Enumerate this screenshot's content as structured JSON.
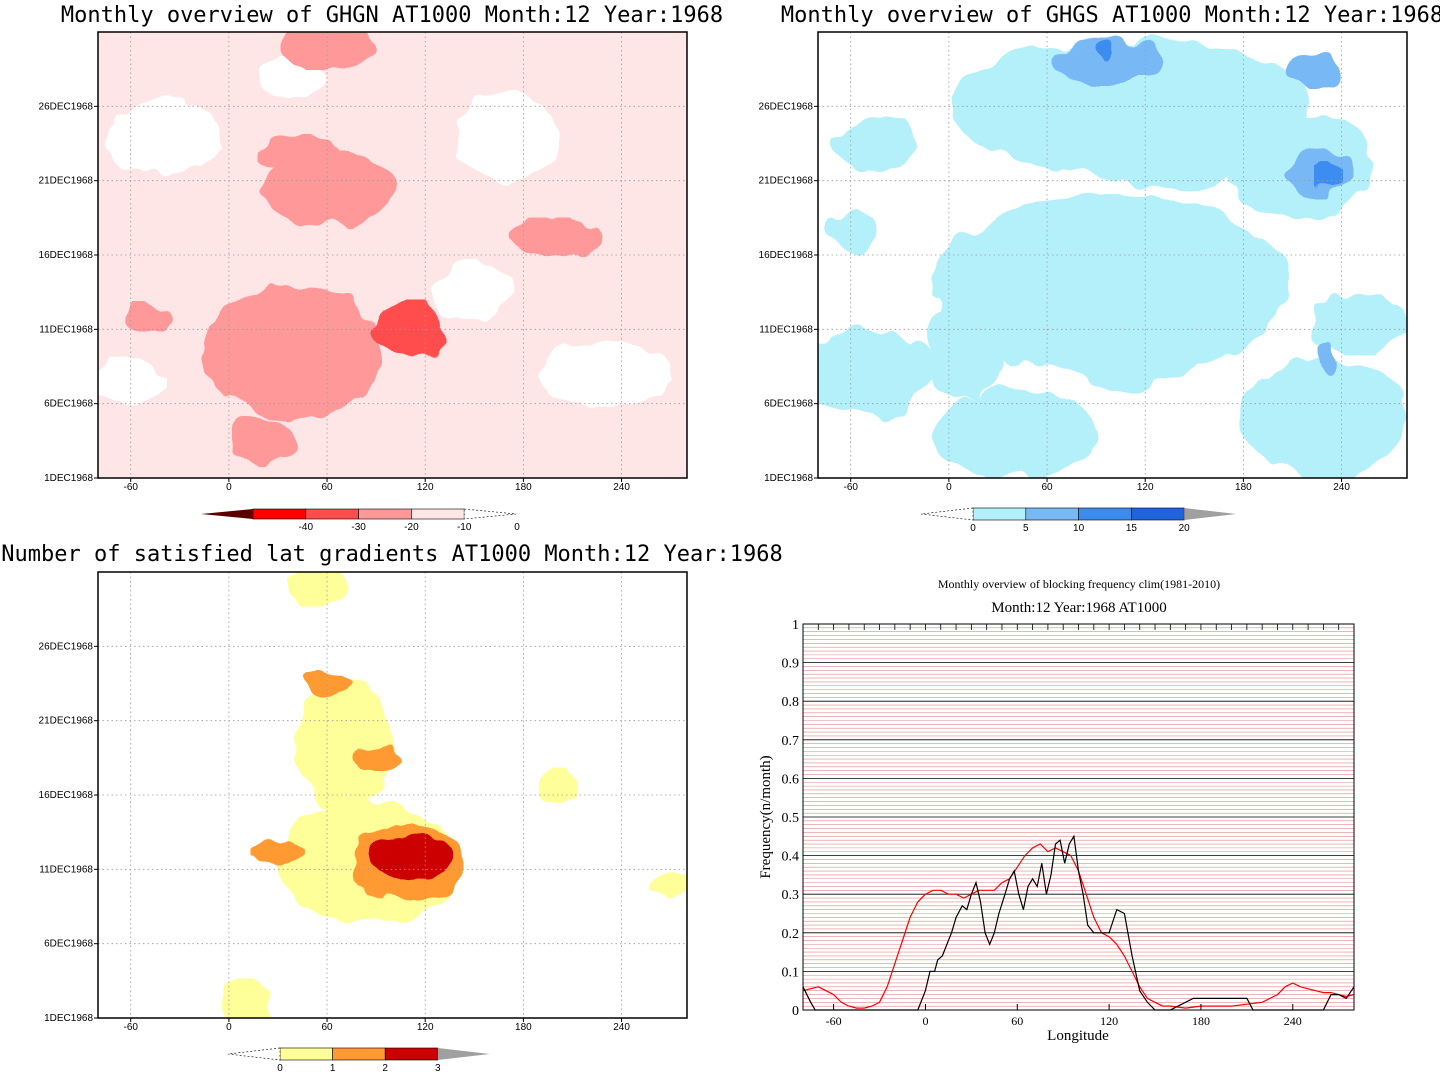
{
  "chart_data": [
    {
      "type": "heatmap",
      "title": "Monthly overview of GHGN AT1000 Month:12 Year:1968",
      "xticks": [
        "-60",
        "0",
        "60",
        "120",
        "180",
        "240"
      ],
      "xtick_values": [
        -60,
        0,
        60,
        120,
        180,
        240
      ],
      "yticks": [
        "1DEC1968",
        "6DEC1968",
        "11DEC1968",
        "16DEC1968",
        "21DEC1968",
        "26DEC1968"
      ],
      "ytick_values": [
        1,
        6,
        11,
        16,
        21,
        26
      ],
      "xlim": [
        -80,
        280
      ],
      "ylim": [
        1,
        31
      ],
      "colorbar": {
        "labels": [
          "-40",
          "-30",
          "-20",
          "-10",
          "0"
        ],
        "colors": [
          "#ff0000",
          "#ff4d4d",
          "#ff9999",
          "#ffe6e6"
        ],
        "low_arrow_color": "#5a0000"
      },
      "blobs": [
        {
          "level": 1,
          "cx": 40,
          "cy": 9.5,
          "rx": 55,
          "ry": 4.5
        },
        {
          "level": 1,
          "cx": 60,
          "cy": 20.5,
          "rx": 40,
          "ry": 2.5
        },
        {
          "level": 1,
          "cx": 20,
          "cy": 3.5,
          "rx": 20,
          "ry": 1.6
        },
        {
          "level": 1,
          "cx": 200,
          "cy": 17.2,
          "rx": 30,
          "ry": 1.2
        },
        {
          "level": 1,
          "cx": 60,
          "cy": 30,
          "rx": 30,
          "ry": 1.4
        },
        {
          "level": 1,
          "cx": 45,
          "cy": 22.8,
          "rx": 25,
          "ry": 1.2
        },
        {
          "level": 1,
          "cx": -50,
          "cy": 11.8,
          "rx": 15,
          "ry": 1
        },
        {
          "level": 2,
          "cx": 110,
          "cy": 11,
          "rx": 22,
          "ry": 1.8
        }
      ]
    },
    {
      "type": "heatmap",
      "title": "Monthly overview of GHGS AT1000 Month:12 Year:1968",
      "xticks": [
        "-60",
        "0",
        "60",
        "120",
        "180",
        "240"
      ],
      "xtick_values": [
        -60,
        0,
        60,
        120,
        180,
        240
      ],
      "yticks": [
        "1DEC1968",
        "6DEC1968",
        "11DEC1968",
        "16DEC1968",
        "21DEC1968",
        "26DEC1968"
      ],
      "ytick_values": [
        1,
        6,
        11,
        16,
        21,
        26
      ],
      "xlim": [
        -80,
        280
      ],
      "ylim": [
        1,
        31
      ],
      "colorbar": {
        "labels": [
          "0",
          "5",
          "10",
          "15",
          "20"
        ],
        "colors": [
          "#b4f0fa",
          "#78b9f5",
          "#3c8cf0",
          "#1e64dc"
        ],
        "high_arrow_color": "#a0a0a0"
      },
      "blobs": [
        {
          "level": 1,
          "cx": 110,
          "cy": 26,
          "rx": 110,
          "ry": 4.5
        },
        {
          "level": 1,
          "cx": 215,
          "cy": 22,
          "rx": 45,
          "ry": 3.5
        },
        {
          "level": 1,
          "cx": 10,
          "cy": 10,
          "rx": 25,
          "ry": 3.5
        },
        {
          "level": 1,
          "cx": 115,
          "cy": 10,
          "rx": 40,
          "ry": 3
        },
        {
          "level": 1,
          "cx": 250,
          "cy": 11.5,
          "rx": 30,
          "ry": 2
        },
        {
          "level": 1,
          "cx": -60,
          "cy": 17.5,
          "rx": 15,
          "ry": 1.6
        },
        {
          "level": 1,
          "cx": -45,
          "cy": 23.5,
          "rx": 25,
          "ry": 2
        },
        {
          "level": 2,
          "cx": 95,
          "cy": 29,
          "rx": 35,
          "ry": 1.6
        },
        {
          "level": 2,
          "cx": 225,
          "cy": 21.5,
          "rx": 20,
          "ry": 1.6
        },
        {
          "level": 2,
          "cx": 220,
          "cy": 28.5,
          "rx": 18,
          "ry": 1.2
        },
        {
          "level": 2,
          "cx": 232,
          "cy": 9,
          "rx": 6,
          "ry": 1.2
        },
        {
          "level": 3,
          "cx": 95,
          "cy": 29.6,
          "rx": 6,
          "ry": 0.8
        },
        {
          "level": 3,
          "cx": 232,
          "cy": 21.2,
          "rx": 8,
          "ry": 1
        }
      ]
    },
    {
      "type": "heatmap",
      "title": "Number of satisfied lat gradients AT1000 Month:12 Year:1968",
      "xticks": [
        "-60",
        "0",
        "60",
        "120",
        "180",
        "240"
      ],
      "xtick_values": [
        -60,
        0,
        60,
        120,
        180,
        240
      ],
      "yticks": [
        "1DEC1968",
        "6DEC1968",
        "11DEC1968",
        "16DEC1968",
        "21DEC1968",
        "26DEC1968"
      ],
      "ytick_values": [
        1,
        6,
        11,
        16,
        21,
        26
      ],
      "xlim": [
        -80,
        280
      ],
      "ylim": [
        1,
        31
      ],
      "colorbar": {
        "labels": [
          "0",
          "1",
          "2",
          "3"
        ],
        "colors": [
          "#ffff99",
          "#ff9933",
          "#cc0000"
        ],
        "high_arrow_color": "#a0a0a0"
      },
      "blobs": [
        {
          "level": 1,
          "cx": 85,
          "cy": 11.5,
          "rx": 55,
          "ry": 4
        },
        {
          "level": 1,
          "cx": 70,
          "cy": 19.5,
          "rx": 30,
          "ry": 4.5
        },
        {
          "level": 1,
          "cx": 10,
          "cy": 2,
          "rx": 15,
          "ry": 1.5
        },
        {
          "level": 1,
          "cx": 200,
          "cy": 16.5,
          "rx": 12,
          "ry": 1.2
        },
        {
          "level": 1,
          "cx": 55,
          "cy": 30,
          "rx": 20,
          "ry": 1.2
        },
        {
          "level": 1,
          "cx": 270,
          "cy": 10,
          "rx": 12,
          "ry": 1
        },
        {
          "level": 2,
          "cx": 110,
          "cy": 11.5,
          "rx": 35,
          "ry": 2.5
        },
        {
          "level": 2,
          "cx": 30,
          "cy": 12.2,
          "rx": 15,
          "ry": 1
        },
        {
          "level": 2,
          "cx": 60,
          "cy": 23.5,
          "rx": 15,
          "ry": 1
        },
        {
          "level": 2,
          "cx": 90,
          "cy": 18.5,
          "rx": 15,
          "ry": 0.8
        },
        {
          "level": 3,
          "cx": 110,
          "cy": 11.8,
          "rx": 25,
          "ry": 1.5
        }
      ]
    },
    {
      "type": "line",
      "title": "Monthly overview of blocking frequency clim(1981-2010)",
      "subtitle": "Month:12 Year:1968  AT1000",
      "xlabel": "Longitude",
      "ylabel": "Frequency(n/month)",
      "xlim": [
        -80,
        280
      ],
      "ylim": [
        0,
        1
      ],
      "xticks": [
        "-60",
        "0",
        "60",
        "120",
        "180",
        "240"
      ],
      "xtick_values": [
        -60,
        0,
        60,
        120,
        180,
        240
      ],
      "yticks": [
        "0",
        "0.1",
        "0.2",
        "0.3",
        "0.4",
        "0.5",
        "0.6",
        "0.7",
        "0.8",
        "0.9",
        "1"
      ],
      "ytick_values": [
        0,
        0.1,
        0.2,
        0.3,
        0.4,
        0.5,
        0.6,
        0.7,
        0.8,
        0.9,
        1
      ],
      "grid": true,
      "series": [
        {
          "color": "#ff0000",
          "x": [
            -80,
            -70,
            -65,
            -60,
            -55,
            -50,
            -45,
            -40,
            -35,
            -30,
            -25,
            -20,
            -15,
            -10,
            -5,
            0,
            5,
            10,
            15,
            20,
            25,
            30,
            35,
            40,
            45,
            50,
            55,
            60,
            65,
            70,
            75,
            80,
            85,
            90,
            95,
            100,
            105,
            110,
            115,
            120,
            125,
            130,
            135,
            140,
            145,
            150,
            155,
            160,
            170,
            180,
            190,
            200,
            210,
            220,
            230,
            235,
            240,
            245,
            250,
            255,
            260,
            265,
            270,
            275,
            280
          ],
          "y": [
            0.05,
            0.06,
            0.05,
            0.04,
            0.02,
            0.01,
            0.005,
            0.005,
            0.01,
            0.02,
            0.06,
            0.12,
            0.18,
            0.24,
            0.28,
            0.3,
            0.31,
            0.31,
            0.3,
            0.3,
            0.29,
            0.3,
            0.31,
            0.31,
            0.31,
            0.33,
            0.34,
            0.37,
            0.4,
            0.42,
            0.43,
            0.41,
            0.42,
            0.41,
            0.4,
            0.36,
            0.3,
            0.24,
            0.2,
            0.19,
            0.17,
            0.14,
            0.1,
            0.06,
            0.03,
            0.02,
            0.01,
            0.01,
            0.005,
            0.01,
            0.01,
            0.01,
            0.015,
            0.02,
            0.04,
            0.06,
            0.07,
            0.06,
            0.055,
            0.05,
            0.045,
            0.045,
            0.04,
            0.035,
            0.04
          ]
        },
        {
          "color": "#000000",
          "x": [
            -80,
            -75,
            -72,
            -68,
            -65,
            -5,
            -2,
            0,
            3,
            6,
            8,
            11,
            14,
            17,
            20,
            24,
            27,
            30,
            33,
            36,
            39,
            42,
            45,
            48,
            52,
            55,
            58,
            61,
            64,
            67,
            70,
            73,
            76,
            79,
            82,
            85,
            88,
            91,
            94,
            97,
            100,
            103,
            106,
            110,
            115,
            120,
            125,
            130,
            135,
            140,
            145,
            150,
            155,
            160,
            175,
            210,
            214,
            260,
            265,
            270,
            275,
            280
          ],
          "y": [
            0.06,
            0.02,
            0,
            0,
            0,
            0,
            0.03,
            0.05,
            0.1,
            0.1,
            0.13,
            0.14,
            0.17,
            0.2,
            0.24,
            0.27,
            0.26,
            0.3,
            0.33,
            0.28,
            0.2,
            0.17,
            0.2,
            0.25,
            0.3,
            0.34,
            0.36,
            0.3,
            0.26,
            0.32,
            0.34,
            0.32,
            0.38,
            0.3,
            0.35,
            0.43,
            0.44,
            0.38,
            0.43,
            0.45,
            0.36,
            0.3,
            0.22,
            0.2,
            0.2,
            0.2,
            0.26,
            0.25,
            0.14,
            0.05,
            0.02,
            0,
            0,
            0,
            0.03,
            0.03,
            0,
            0,
            0.04,
            0.04,
            0.03,
            0.06
          ]
        }
      ]
    }
  ]
}
